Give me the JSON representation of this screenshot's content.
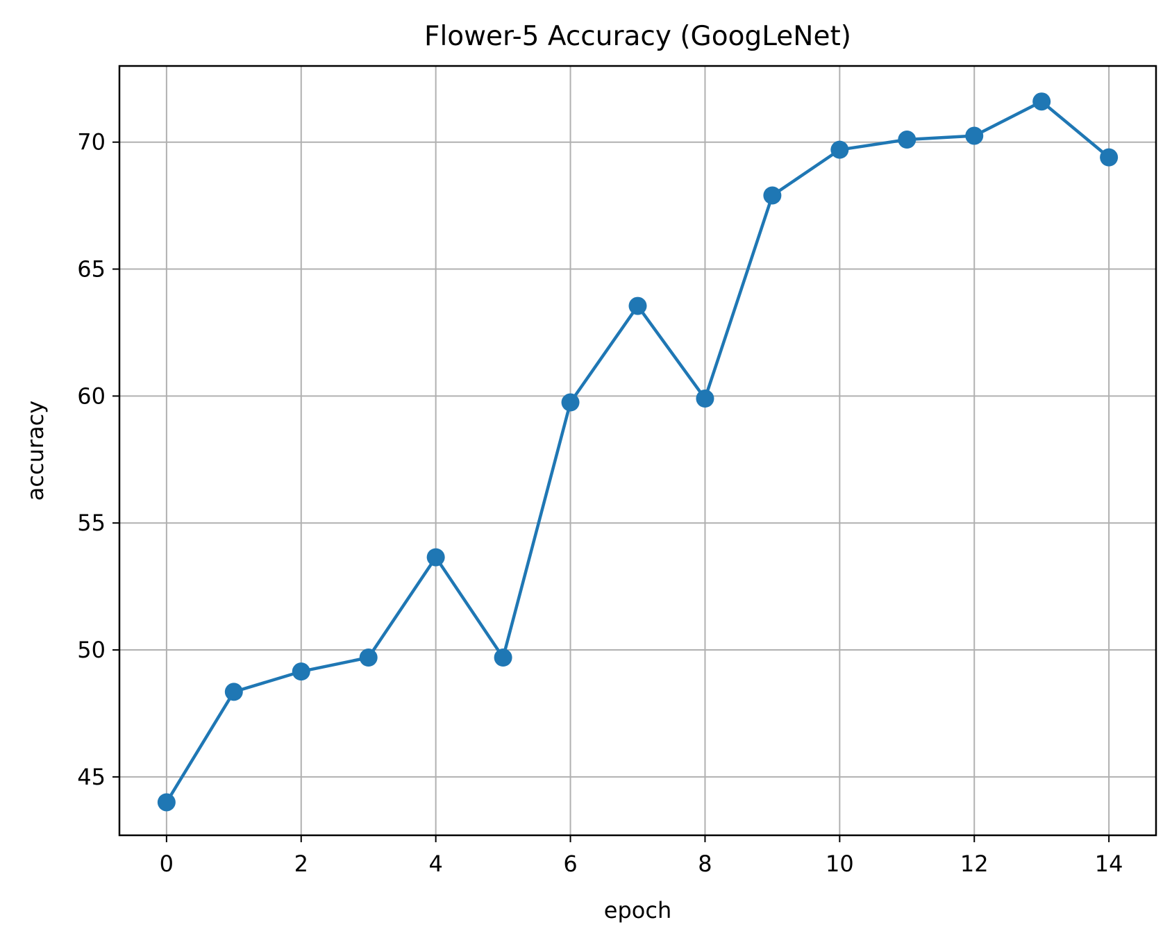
{
  "chart_data": {
    "type": "line",
    "title": "Flower-5 Accuracy (GoogLeNet)",
    "xlabel": "epoch",
    "ylabel": "accuracy",
    "xlim": [
      -0.7,
      14.7
    ],
    "ylim": [
      42.7,
      73.0
    ],
    "xticks": [
      0,
      2,
      4,
      6,
      8,
      10,
      12,
      14
    ],
    "yticks": [
      45,
      50,
      55,
      60,
      65,
      70
    ],
    "grid": true,
    "series": [
      {
        "x": [
          0,
          1,
          2,
          3,
          4,
          5,
          6,
          7,
          8,
          9,
          10,
          11,
          12,
          13,
          14
        ],
        "values": [
          44.0,
          48.35,
          49.15,
          49.7,
          53.65,
          49.7,
          59.75,
          63.55,
          59.9,
          67.9,
          69.7,
          70.1,
          70.25,
          71.6,
          69.4
        ],
        "color": "#1f77b4",
        "marker": "circle"
      }
    ]
  }
}
